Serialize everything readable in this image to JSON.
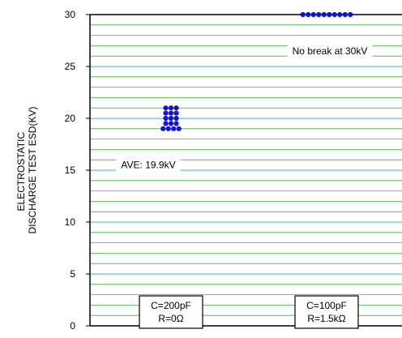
{
  "chart_data": {
    "type": "scatter",
    "ylabel": [
      "ELECTROSTATIC",
      "DISCHARGE TEST ESD(KV)"
    ],
    "ylim": [
      0,
      30
    ],
    "y_ticks": [
      0,
      5,
      10,
      15,
      20,
      25,
      30
    ],
    "minor_grid_step": 1,
    "grid": true,
    "categories": [
      {
        "label_lines": [
          "C=200pF",
          "R=0Ω"
        ]
      },
      {
        "label_lines": [
          "C=100pF",
          "R=1.5kΩ"
        ]
      }
    ],
    "series": [
      {
        "category": 0,
        "points": [
          {
            "y": 21,
            "count": 3
          },
          {
            "y": 20.5,
            "count": 3
          },
          {
            "y": 20,
            "count": 3
          },
          {
            "y": 19.5,
            "count": 3
          },
          {
            "y": 19,
            "count": 4
          }
        ]
      },
      {
        "category": 1,
        "points": [
          {
            "y": 30,
            "count": 10
          }
        ]
      }
    ],
    "annotations": [
      {
        "category": 0,
        "text": "AVE: 19.9kV",
        "y": 15.5
      },
      {
        "category": 1,
        "text": "No break at 30kV",
        "y": 26.5
      }
    ],
    "colors": {
      "point": "#1010e0",
      "minor_grid": "#33bb33",
      "major_grid": "#55c8e8",
      "axis": "#000000"
    }
  }
}
